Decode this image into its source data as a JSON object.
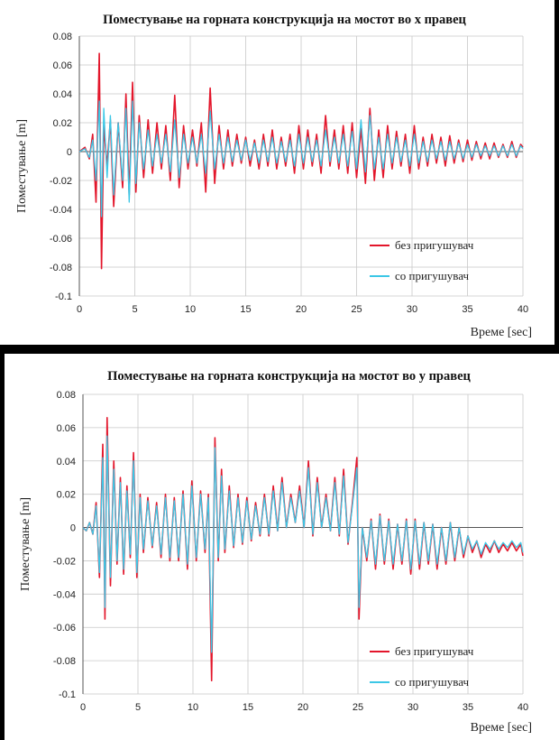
{
  "colors": {
    "without_damper": "#e3162b",
    "with_damper": "#3cc7e6",
    "grid": "#c8c8c8"
  },
  "chart_data": [
    {
      "type": "line",
      "title": "Поместување на горната конструкција на мостот во x правец",
      "xlabel": "Време [sec]",
      "ylabel": "Поместување [m]",
      "xlim": [
        0,
        40
      ],
      "ylim": [
        -0.1,
        0.08
      ],
      "xticks": [
        0,
        5,
        10,
        15,
        20,
        25,
        30,
        35,
        40
      ],
      "yticks": [
        -0.1,
        -0.08,
        -0.06,
        -0.04,
        -0.02,
        0,
        0.02,
        0.04,
        0.06,
        0.08
      ],
      "ytick_labels": [
        "-0.1",
        "-0.08",
        "-0.06",
        "-0.04",
        "-0.02",
        "0",
        "0.02",
        "0.04",
        "0.06",
        "0.08"
      ],
      "xtick_labels": [
        "0",
        "5",
        "10",
        "15",
        "20",
        "25",
        "30",
        "35",
        "40"
      ],
      "grid": true,
      "legend_position": "bottom-right",
      "series": [
        {
          "name": "без пригушувач",
          "color": "#e3162b",
          "x": [
            0,
            0.5,
            0.9,
            1.2,
            1.5,
            1.8,
            2.0,
            2.2,
            2.5,
            2.8,
            3.1,
            3.5,
            3.9,
            4.2,
            4.5,
            4.8,
            5.1,
            5.4,
            5.8,
            6.2,
            6.6,
            7.0,
            7.4,
            7.8,
            8.2,
            8.6,
            9.0,
            9.4,
            9.8,
            10.2,
            10.6,
            11.0,
            11.4,
            11.8,
            12.2,
            12.6,
            13.0,
            13.4,
            13.8,
            14.2,
            14.6,
            15.0,
            15.4,
            15.8,
            16.2,
            16.6,
            17.0,
            17.4,
            17.8,
            18.2,
            18.6,
            19.0,
            19.4,
            19.8,
            20.2,
            20.6,
            21.0,
            21.4,
            21.8,
            22.2,
            22.6,
            23.0,
            23.4,
            23.8,
            24.2,
            24.6,
            25.0,
            25.4,
            25.8,
            26.2,
            26.6,
            27.0,
            27.4,
            27.8,
            28.2,
            28.6,
            29.0,
            29.4,
            29.8,
            30.2,
            30.6,
            31.0,
            31.4,
            31.8,
            32.2,
            32.6,
            33.0,
            33.4,
            33.8,
            34.2,
            34.6,
            35.0,
            35.4,
            35.8,
            36.2,
            36.6,
            37.0,
            37.4,
            37.8,
            38.2,
            38.6,
            39.0,
            39.4,
            39.8,
            40.0
          ],
          "y": [
            0,
            0.003,
            -0.005,
            0.012,
            -0.035,
            0.068,
            -0.081,
            0.018,
            -0.01,
            0.022,
            -0.038,
            0.02,
            -0.025,
            0.04,
            -0.03,
            0.048,
            -0.028,
            0.025,
            -0.018,
            0.022,
            -0.015,
            0.02,
            -0.012,
            0.018,
            -0.02,
            0.039,
            -0.025,
            0.018,
            -0.012,
            0.015,
            -0.01,
            0.02,
            -0.028,
            0.044,
            -0.022,
            0.018,
            -0.012,
            0.015,
            -0.01,
            0.012,
            -0.008,
            0.01,
            -0.01,
            0.008,
            -0.012,
            0.012,
            -0.01,
            0.015,
            -0.012,
            0.01,
            -0.01,
            0.012,
            -0.015,
            0.018,
            -0.012,
            0.015,
            -0.01,
            0.012,
            -0.015,
            0.025,
            -0.01,
            0.015,
            -0.012,
            0.018,
            -0.015,
            0.02,
            -0.018,
            0.016,
            -0.022,
            0.03,
            -0.02,
            0.015,
            -0.018,
            0.018,
            -0.012,
            0.014,
            -0.01,
            0.012,
            -0.015,
            0.018,
            -0.012,
            0.01,
            -0.01,
            0.012,
            -0.008,
            0.01,
            -0.01,
            0.011,
            -0.008,
            0.008,
            -0.007,
            0.008,
            -0.006,
            0.007,
            -0.005,
            0.006,
            -0.005,
            0.006,
            -0.004,
            0.005,
            -0.004,
            0.007,
            -0.004,
            0.005,
            0.003
          ]
        },
        {
          "name": "со пригушувач",
          "color": "#3cc7e6",
          "x": [
            0,
            0.5,
            0.9,
            1.2,
            1.5,
            1.8,
            2.0,
            2.2,
            2.5,
            2.8,
            3.1,
            3.5,
            3.9,
            4.2,
            4.5,
            4.8,
            5.1,
            5.4,
            5.8,
            6.2,
            6.6,
            7.0,
            7.4,
            7.8,
            8.2,
            8.6,
            9.0,
            9.4,
            9.8,
            10.2,
            10.6,
            11.0,
            11.4,
            11.8,
            12.2,
            12.6,
            13.0,
            13.4,
            13.8,
            14.2,
            14.6,
            15.0,
            15.4,
            15.8,
            16.2,
            16.6,
            17.0,
            17.4,
            17.8,
            18.2,
            18.6,
            19.0,
            19.4,
            19.8,
            20.2,
            20.6,
            21.0,
            21.4,
            21.8,
            22.2,
            22.6,
            23.0,
            23.4,
            23.8,
            24.2,
            24.6,
            25.0,
            25.4,
            25.8,
            26.2,
            26.6,
            27.0,
            27.4,
            27.8,
            28.2,
            28.6,
            29.0,
            29.4,
            29.8,
            30.2,
            30.6,
            31.0,
            31.4,
            31.8,
            32.2,
            32.6,
            33.0,
            33.4,
            33.8,
            34.2,
            34.6,
            35.0,
            35.4,
            35.8,
            36.2,
            36.6,
            37.0,
            37.4,
            37.8,
            38.2,
            38.6,
            39.0,
            39.4,
            39.8,
            40.0
          ],
          "y": [
            0,
            0.002,
            -0.004,
            0.008,
            -0.02,
            0.035,
            -0.045,
            0.03,
            -0.018,
            0.025,
            -0.03,
            0.02,
            -0.02,
            0.03,
            -0.035,
            0.035,
            -0.022,
            0.02,
            -0.012,
            0.015,
            -0.01,
            0.012,
            -0.008,
            0.012,
            -0.014,
            0.022,
            -0.018,
            0.012,
            -0.008,
            0.01,
            -0.008,
            0.012,
            -0.015,
            0.028,
            -0.012,
            0.012,
            -0.008,
            0.01,
            -0.007,
            0.008,
            -0.006,
            0.008,
            -0.006,
            0.006,
            -0.008,
            0.008,
            -0.007,
            0.01,
            -0.008,
            0.007,
            -0.007,
            0.008,
            -0.01,
            0.012,
            -0.008,
            0.01,
            -0.007,
            0.008,
            -0.01,
            0.015,
            -0.007,
            0.01,
            -0.008,
            0.012,
            -0.01,
            0.014,
            -0.012,
            0.022,
            -0.014,
            0.025,
            -0.012,
            0.01,
            -0.012,
            0.012,
            -0.008,
            0.01,
            -0.007,
            0.008,
            -0.01,
            0.012,
            -0.008,
            0.007,
            -0.007,
            0.008,
            -0.005,
            0.007,
            -0.006,
            0.007,
            -0.005,
            0.006,
            -0.005,
            0.005,
            -0.004,
            0.005,
            -0.003,
            0.004,
            -0.003,
            0.004,
            -0.003,
            0.004,
            -0.003,
            0.005,
            -0.003,
            0.004,
            0.002
          ]
        }
      ]
    },
    {
      "type": "line",
      "title": "Поместување на горната конструкција на мостот во у правец",
      "xlabel": "Време [sec]",
      "ylabel": "Поместување [m]",
      "xlim": [
        0,
        40
      ],
      "ylim": [
        -0.1,
        0.08
      ],
      "xticks": [
        0,
        5,
        10,
        15,
        20,
        25,
        30,
        35,
        40
      ],
      "yticks": [
        -0.1,
        -0.08,
        -0.06,
        -0.04,
        -0.02,
        0,
        0.02,
        0.04,
        0.06,
        0.08
      ],
      "ytick_labels": [
        "-0.1",
        "-0.08",
        "-0.06",
        "-0.04",
        "-0.02",
        "0",
        "0.02",
        "0.04",
        "0.06",
        "0.08"
      ],
      "xtick_labels": [
        "0",
        "5",
        "10",
        "15",
        "20",
        "25",
        "30",
        "35",
        "40"
      ],
      "grid": true,
      "legend_position": "bottom-right",
      "series": [
        {
          "name": "без пригушувач",
          "color": "#e3162b",
          "x": [
            0,
            0.3,
            0.6,
            0.9,
            1.2,
            1.5,
            1.8,
            2.0,
            2.2,
            2.5,
            2.8,
            3.1,
            3.4,
            3.7,
            4.0,
            4.3,
            4.6,
            4.9,
            5.2,
            5.5,
            5.9,
            6.3,
            6.7,
            7.1,
            7.5,
            7.9,
            8.3,
            8.7,
            9.1,
            9.5,
            9.9,
            10.3,
            10.7,
            11.1,
            11.4,
            11.7,
            12.0,
            12.3,
            12.6,
            12.9,
            13.3,
            13.7,
            14.1,
            14.5,
            14.9,
            15.3,
            15.7,
            16.1,
            16.5,
            16.9,
            17.3,
            17.7,
            18.1,
            18.5,
            18.9,
            19.3,
            19.7,
            20.1,
            20.5,
            20.9,
            21.3,
            21.7,
            22.1,
            22.5,
            22.9,
            23.3,
            23.7,
            24.1,
            24.5,
            24.9,
            25.1,
            25.4,
            25.8,
            26.2,
            26.6,
            27.0,
            27.4,
            27.8,
            28.2,
            28.6,
            29.0,
            29.4,
            29.8,
            30.2,
            30.6,
            31.0,
            31.4,
            31.8,
            32.2,
            32.6,
            33.0,
            33.4,
            33.8,
            34.2,
            34.6,
            35.0,
            35.4,
            35.8,
            36.2,
            36.6,
            37.0,
            37.4,
            37.8,
            38.2,
            38.6,
            39.0,
            39.4,
            39.8,
            40.0
          ],
          "y": [
            0,
            -0.002,
            0.003,
            -0.004,
            0.015,
            -0.03,
            0.05,
            -0.055,
            0.066,
            -0.035,
            0.04,
            -0.022,
            0.03,
            -0.028,
            0.025,
            -0.018,
            0.045,
            -0.03,
            0.02,
            -0.015,
            0.018,
            -0.012,
            0.015,
            -0.018,
            0.02,
            -0.02,
            0.018,
            -0.02,
            0.022,
            -0.025,
            0.028,
            -0.02,
            0.022,
            -0.015,
            0.02,
            -0.092,
            0.054,
            -0.02,
            0.035,
            -0.015,
            0.025,
            -0.012,
            0.02,
            -0.01,
            0.018,
            -0.008,
            0.015,
            -0.005,
            0.02,
            -0.005,
            0.025,
            -0.002,
            0.03,
            0.0,
            0.02,
            0.003,
            0.025,
            0.0,
            0.04,
            -0.005,
            0.03,
            0.0,
            0.02,
            -0.002,
            0.03,
            -0.005,
            0.035,
            -0.01,
            0.015,
            0.042,
            -0.055,
            0.0,
            -0.02,
            0.005,
            -0.025,
            0.008,
            -0.022,
            0.005,
            -0.025,
            0.002,
            -0.022,
            0.005,
            -0.028,
            0.005,
            -0.025,
            0.003,
            -0.022,
            0.002,
            -0.025,
            0.0,
            -0.022,
            0.003,
            -0.02,
            0.0,
            -0.018,
            -0.005,
            -0.015,
            -0.008,
            -0.018,
            -0.01,
            -0.015,
            -0.008,
            -0.015,
            -0.01,
            -0.014,
            -0.009,
            -0.014,
            -0.01,
            -0.017
          ]
        },
        {
          "name": "со пригушувач",
          "color": "#3cc7e6",
          "x": [
            0,
            0.3,
            0.6,
            0.9,
            1.2,
            1.5,
            1.8,
            2.0,
            2.2,
            2.5,
            2.8,
            3.1,
            3.4,
            3.7,
            4.0,
            4.3,
            4.6,
            4.9,
            5.2,
            5.5,
            5.9,
            6.3,
            6.7,
            7.1,
            7.5,
            7.9,
            8.3,
            8.7,
            9.1,
            9.5,
            9.9,
            10.3,
            10.7,
            11.1,
            11.4,
            11.7,
            12.0,
            12.3,
            12.6,
            12.9,
            13.3,
            13.7,
            14.1,
            14.5,
            14.9,
            15.3,
            15.7,
            16.1,
            16.5,
            16.9,
            17.3,
            17.7,
            18.1,
            18.5,
            18.9,
            19.3,
            19.7,
            20.1,
            20.5,
            20.9,
            21.3,
            21.7,
            22.1,
            22.5,
            22.9,
            23.3,
            23.7,
            24.1,
            24.5,
            24.9,
            25.1,
            25.4,
            25.8,
            26.2,
            26.6,
            27.0,
            27.4,
            27.8,
            28.2,
            28.6,
            29.0,
            29.4,
            29.8,
            30.2,
            30.6,
            31.0,
            31.4,
            31.8,
            32.2,
            32.6,
            33.0,
            33.4,
            33.8,
            34.2,
            34.6,
            35.0,
            35.4,
            35.8,
            36.2,
            36.6,
            37.0,
            37.4,
            37.8,
            38.2,
            38.6,
            39.0,
            39.4,
            39.8,
            40.0
          ],
          "y": [
            0,
            -0.002,
            0.003,
            -0.004,
            0.013,
            -0.027,
            0.042,
            -0.048,
            0.055,
            -0.03,
            0.035,
            -0.02,
            0.027,
            -0.025,
            0.022,
            -0.016,
            0.04,
            -0.027,
            0.018,
            -0.013,
            0.016,
            -0.011,
            0.013,
            -0.016,
            0.018,
            -0.018,
            0.016,
            -0.018,
            0.02,
            -0.022,
            0.025,
            -0.018,
            0.02,
            -0.013,
            0.018,
            -0.075,
            0.048,
            -0.018,
            0.031,
            -0.013,
            0.022,
            -0.011,
            0.018,
            -0.009,
            0.016,
            -0.007,
            0.013,
            -0.004,
            0.018,
            -0.004,
            0.022,
            -0.002,
            0.027,
            0.0,
            0.018,
            0.003,
            0.022,
            0.0,
            0.036,
            -0.004,
            0.027,
            0.0,
            0.018,
            -0.002,
            0.027,
            -0.004,
            0.031,
            -0.009,
            0.013,
            0.036,
            -0.048,
            0.0,
            -0.018,
            0.004,
            -0.022,
            0.007,
            -0.02,
            0.004,
            -0.022,
            0.002,
            -0.02,
            0.004,
            -0.025,
            0.004,
            -0.022,
            0.003,
            -0.02,
            0.002,
            -0.022,
            0.0,
            -0.02,
            0.003,
            -0.018,
            0.0,
            -0.016,
            -0.005,
            -0.013,
            -0.008,
            -0.016,
            -0.009,
            -0.013,
            -0.008,
            -0.013,
            -0.009,
            -0.012,
            -0.008,
            -0.012,
            -0.009,
            -0.015
          ]
        }
      ]
    }
  ]
}
